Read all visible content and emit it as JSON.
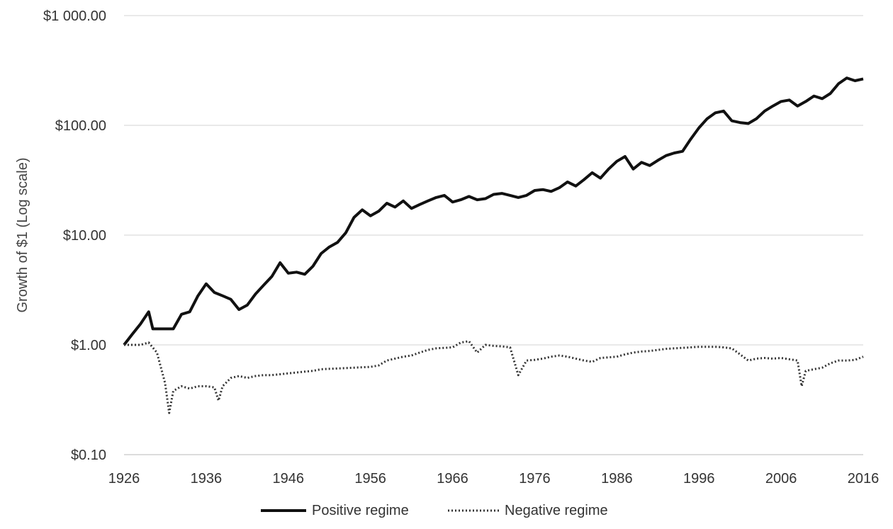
{
  "chart_data": {
    "type": "line",
    "title": "",
    "xlabel": "",
    "ylabel": "Growth of $1 (Log scale)",
    "y_scale": "log",
    "ylim": [
      0.1,
      1000
    ],
    "xlim": [
      1926,
      2016
    ],
    "x_ticks": [
      "1926",
      "1936",
      "1946",
      "1956",
      "1966",
      "1976",
      "1986",
      "1996",
      "2006",
      "2016"
    ],
    "y_ticks": [
      {
        "value": 1000,
        "label": "$1 000.00"
      },
      {
        "value": 100,
        "label": "$100.00"
      },
      {
        "value": 10,
        "label": "$10.00"
      },
      {
        "value": 1,
        "label": "$1.00"
      },
      {
        "value": 0.1,
        "label": "$0.10"
      }
    ],
    "grid": "horizontal",
    "legend_position": "bottom",
    "series": [
      {
        "name": "Positive regime",
        "style": "solid",
        "color": "#111111",
        "x": [
          1926,
          1927,
          1928,
          1929,
          1929.5,
          1930,
          1932,
          1933,
          1934,
          1935,
          1936,
          1937,
          1938,
          1939,
          1940,
          1941,
          1942,
          1943,
          1944,
          1945,
          1946,
          1947,
          1948,
          1949,
          1950,
          1951,
          1952,
          1953,
          1954,
          1955,
          1956,
          1957,
          1958,
          1959,
          1960,
          1961,
          1962,
          1963,
          1964,
          1965,
          1966,
          1967,
          1968,
          1969,
          1970,
          1971,
          1972,
          1973,
          1974,
          1975,
          1976,
          1977,
          1978,
          1979,
          1980,
          1981,
          1982,
          1983,
          1984,
          1985,
          1986,
          1987,
          1988,
          1989,
          1990,
          1991,
          1992,
          1993,
          1994,
          1995,
          1996,
          1997,
          1998,
          1999,
          2000,
          2001,
          2002,
          2003,
          2004,
          2005,
          2006,
          2007,
          2008,
          2009,
          2010,
          2011,
          2012,
          2013,
          2014,
          2015,
          2016
        ],
        "values": [
          1.0,
          1.25,
          1.55,
          2.0,
          1.4,
          1.4,
          1.4,
          1.9,
          2.0,
          2.8,
          3.6,
          3.0,
          2.8,
          2.6,
          2.1,
          2.3,
          2.9,
          3.5,
          4.2,
          5.6,
          4.5,
          4.6,
          4.4,
          5.2,
          6.8,
          7.8,
          8.6,
          10.5,
          14.5,
          17.0,
          15.0,
          16.5,
          19.5,
          18.0,
          20.5,
          17.5,
          19.0,
          20.5,
          22.0,
          23.0,
          20.0,
          21.0,
          22.5,
          21.0,
          21.5,
          23.5,
          24.0,
          23.0,
          22.0,
          23.0,
          25.5,
          26.0,
          25.0,
          27.0,
          30.5,
          28.0,
          32.0,
          37.0,
          33.0,
          40.0,
          47.0,
          52.0,
          40.0,
          46.0,
          43.0,
          48.0,
          53.0,
          56.0,
          58.0,
          75.0,
          95.0,
          115.0,
          130.0,
          135.0,
          110.0,
          106.0,
          104.0,
          115.0,
          135.0,
          150.0,
          165.0,
          170.0,
          150.0,
          165.0,
          185.0,
          175.0,
          195.0,
          240.0,
          270.0,
          255.0,
          265.0
        ]
      },
      {
        "name": "Negative regime",
        "style": "dotted",
        "color": "#333333",
        "x": [
          1926,
          1927,
          1928,
          1929,
          1930,
          1931,
          1931.5,
          1932,
          1933,
          1934,
          1935,
          1936,
          1937,
          1937.5,
          1938,
          1939,
          1940,
          1941,
          1942,
          1943,
          1944,
          1945,
          1946,
          1947,
          1948,
          1949,
          1950,
          1952,
          1954,
          1956,
          1957,
          1958,
          1959,
          1960,
          1961,
          1962,
          1963,
          1964,
          1965,
          1966,
          1967,
          1968,
          1969,
          1970,
          1971,
          1972,
          1973,
          1974,
          1975,
          1976,
          1977,
          1978,
          1979,
          1980,
          1981,
          1982,
          1983,
          1984,
          1985,
          1986,
          1987,
          1988,
          1989,
          1990,
          1991,
          1992,
          1993,
          1994,
          1995,
          1996,
          1997,
          1998,
          1999,
          2000,
          2001,
          2002,
          2003,
          2004,
          2005,
          2006,
          2007,
          2008,
          2008.5,
          2009,
          2010,
          2011,
          2012,
          2013,
          2014,
          2015,
          2016
        ],
        "values": [
          1.0,
          1.0,
          1.0,
          1.05,
          0.85,
          0.45,
          0.24,
          0.38,
          0.42,
          0.4,
          0.42,
          0.42,
          0.41,
          0.31,
          0.42,
          0.5,
          0.52,
          0.5,
          0.52,
          0.53,
          0.53,
          0.54,
          0.55,
          0.56,
          0.57,
          0.58,
          0.6,
          0.61,
          0.62,
          0.63,
          0.65,
          0.72,
          0.75,
          0.78,
          0.8,
          0.85,
          0.9,
          0.93,
          0.94,
          0.95,
          1.05,
          1.08,
          0.85,
          1.0,
          0.98,
          0.97,
          0.95,
          0.53,
          0.72,
          0.73,
          0.75,
          0.78,
          0.8,
          0.78,
          0.75,
          0.72,
          0.7,
          0.76,
          0.77,
          0.78,
          0.82,
          0.85,
          0.87,
          0.88,
          0.9,
          0.92,
          0.93,
          0.94,
          0.95,
          0.96,
          0.96,
          0.96,
          0.95,
          0.93,
          0.82,
          0.72,
          0.75,
          0.76,
          0.75,
          0.76,
          0.74,
          0.72,
          0.42,
          0.58,
          0.6,
          0.62,
          0.68,
          0.72,
          0.72,
          0.73,
          0.78
        ]
      }
    ]
  }
}
